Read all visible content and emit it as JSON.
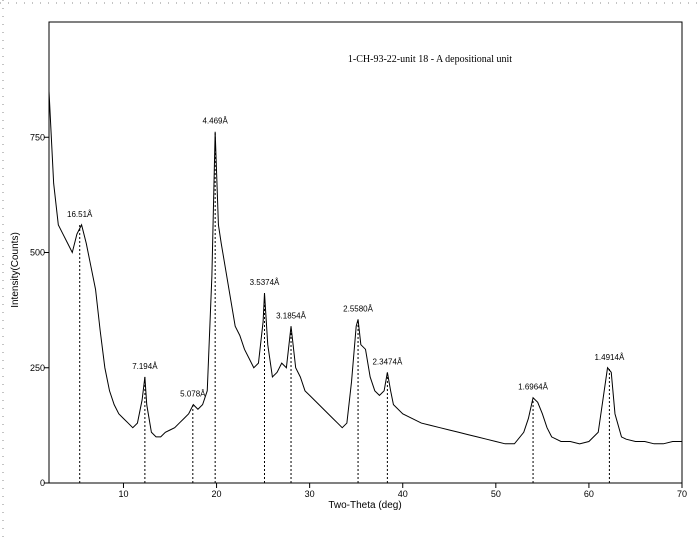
{
  "chart_data": {
    "type": "line",
    "title": "1-CH-93-22-unit 18 - A depositional unit",
    "x_label": "Two-Theta (deg)",
    "y_label": "Intensity(Counts)",
    "color": "#000000",
    "xlim": [
      2,
      70
    ],
    "xticks": [
      10,
      20,
      30,
      40,
      50,
      60,
      70
    ],
    "ylim": [
      0,
      1000
    ],
    "yticks": [
      0,
      250,
      500,
      750
    ],
    "x": [
      2,
      2.5,
      3,
      3.5,
      4,
      4.5,
      5,
      5.5,
      6,
      6.5,
      7,
      7.5,
      8,
      8.5,
      9,
      9.5,
      10,
      10.5,
      11,
      11.5,
      12,
      12.3,
      12.5,
      13,
      13.5,
      14,
      14.5,
      15,
      15.5,
      16,
      16.5,
      17,
      17.5,
      18,
      18.5,
      19,
      19.5,
      19.85,
      20.2,
      20.5,
      21,
      21.5,
      22,
      22.5,
      23,
      23.5,
      24,
      24.5,
      25,
      25.15,
      25.5,
      26,
      26.5,
      27,
      27.5,
      28,
      28.5,
      29,
      29.5,
      30,
      30.5,
      31,
      31.5,
      32,
      32.5,
      33,
      33.5,
      34,
      34.5,
      35,
      35.2,
      35.5,
      36,
      36.5,
      37,
      37.5,
      38,
      38.35,
      38.7,
      39,
      40,
      41,
      42,
      43,
      44,
      45,
      46,
      47,
      48,
      49,
      50,
      51,
      52,
      53,
      53.5,
      54,
      54.5,
      55,
      55.5,
      56,
      57,
      58,
      59,
      60,
      61,
      61.5,
      62,
      62.4,
      62.8,
      63.5,
      64,
      65,
      66,
      67,
      68,
      69,
      70
    ],
    "values": [
      850,
      650,
      560,
      540,
      520,
      500,
      540,
      560,
      520,
      470,
      420,
      330,
      250,
      200,
      170,
      150,
      140,
      130,
      120,
      130,
      180,
      230,
      170,
      110,
      100,
      100,
      110,
      115,
      120,
      130,
      140,
      150,
      170,
      160,
      170,
      200,
      450,
      762,
      560,
      520,
      460,
      400,
      340,
      320,
      290,
      270,
      250,
      260,
      350,
      412,
      300,
      230,
      240,
      260,
      250,
      340,
      250,
      230,
      200,
      190,
      180,
      170,
      160,
      150,
      140,
      130,
      120,
      130,
      220,
      340,
      355,
      300,
      290,
      230,
      200,
      190,
      200,
      240,
      200,
      170,
      150,
      140,
      130,
      125,
      120,
      115,
      110,
      105,
      100,
      95,
      90,
      85,
      85,
      110,
      140,
      185,
      175,
      150,
      120,
      100,
      90,
      90,
      85,
      90,
      110,
      180,
      250,
      240,
      150,
      100,
      95,
      90,
      90,
      85,
      85,
      90,
      90
    ],
    "annotations": [
      {
        "text": "16.51Å",
        "x": 5.3,
        "y": 560
      },
      {
        "text": "7.194Å",
        "x": 12.3,
        "y": 230
      },
      {
        "text": "5.078Å",
        "x": 17.45,
        "y": 170
      },
      {
        "text": "4.469Å",
        "x": 19.85,
        "y": 762
      },
      {
        "text": "3.5374Å",
        "x": 25.15,
        "y": 412
      },
      {
        "text": "3.1854Å",
        "x": 28.0,
        "y": 340
      },
      {
        "text": "2.5580Å",
        "x": 35.2,
        "y": 355
      },
      {
        "text": "2.3474Å",
        "x": 38.35,
        "y": 240
      },
      {
        "text": "1.6964Å",
        "x": 54.0,
        "y": 185
      },
      {
        "text": "1.4914Å",
        "x": 62.2,
        "y": 250
      }
    ]
  }
}
